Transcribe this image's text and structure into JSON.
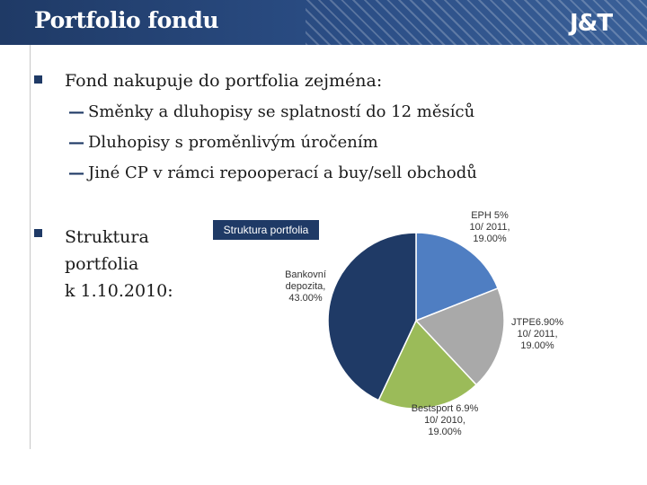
{
  "header": {
    "title": "Portfolio fondu",
    "logo": "J&T"
  },
  "bullets": [
    {
      "text": "Fond nakupuje do portfolia zejména:"
    }
  ],
  "sub_items": [
    "Směnky a dluhopisy se splatností do 12 měsíců",
    "Dluhopisy s proměnlivým úročením",
    "Jiné CP v rámci repooperací a buy/sell obchodů"
  ],
  "structure_label": [
    "Struktura",
    "portfolia",
    "k 1.10.2010:"
  ],
  "colors": {
    "header": "#1f3a66",
    "accent": "#1f3a66"
  },
  "chart_data": {
    "type": "pie",
    "title": "Struktura portfolia",
    "slices": [
      {
        "label": [
          "EPH 5%",
          "10/ 2011,",
          "19.00%"
        ],
        "value": 19.0,
        "color": "#4f7ec2"
      },
      {
        "label": [
          "JTPE6.90%",
          "10/ 2011,",
          "19.00%"
        ],
        "value": 19.0,
        "color": "#a9a9a9"
      },
      {
        "label": [
          "Bestsport 6.9%",
          "10/ 2010,",
          "19.00%"
        ],
        "value": 19.0,
        "color": "#9bbb59"
      },
      {
        "label": [
          "Bankovní",
          "depozita,",
          "43.00%"
        ],
        "value": 43.0,
        "color": "#1f3a66"
      }
    ]
  }
}
